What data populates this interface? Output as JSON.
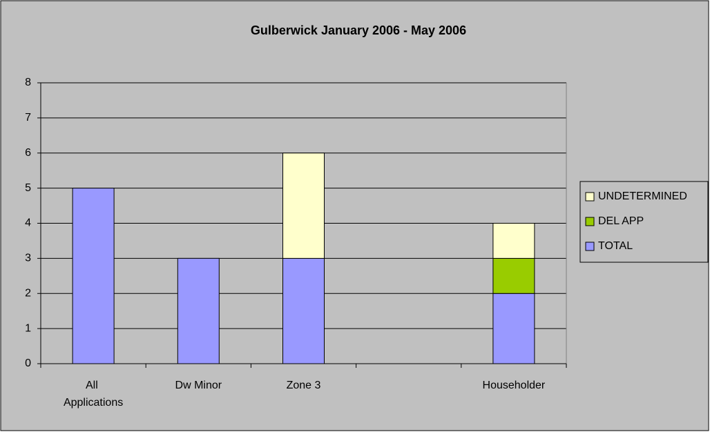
{
  "chart_data": {
    "type": "stacked_bar",
    "title": "Gulberwick January 2006 - May 2006",
    "categories": [
      "All Applications",
      "Dw Minor",
      "Zone 3",
      null,
      "Householder"
    ],
    "series": [
      {
        "name": "TOTAL",
        "color": "#9999ff",
        "values": [
          5,
          3,
          3,
          null,
          2
        ]
      },
      {
        "name": "DEL APP",
        "color": "#99cc00",
        "values": [
          0,
          0,
          0,
          null,
          1
        ]
      },
      {
        "name": "UNDETERMINED",
        "color": "#ffffcc",
        "values": [
          0,
          0,
          3,
          null,
          1
        ]
      }
    ],
    "ylim": [
      0,
      8
    ],
    "yticks": [
      0,
      1,
      2,
      3,
      4,
      5,
      6,
      7,
      8
    ],
    "grid": true,
    "legend": "right"
  }
}
